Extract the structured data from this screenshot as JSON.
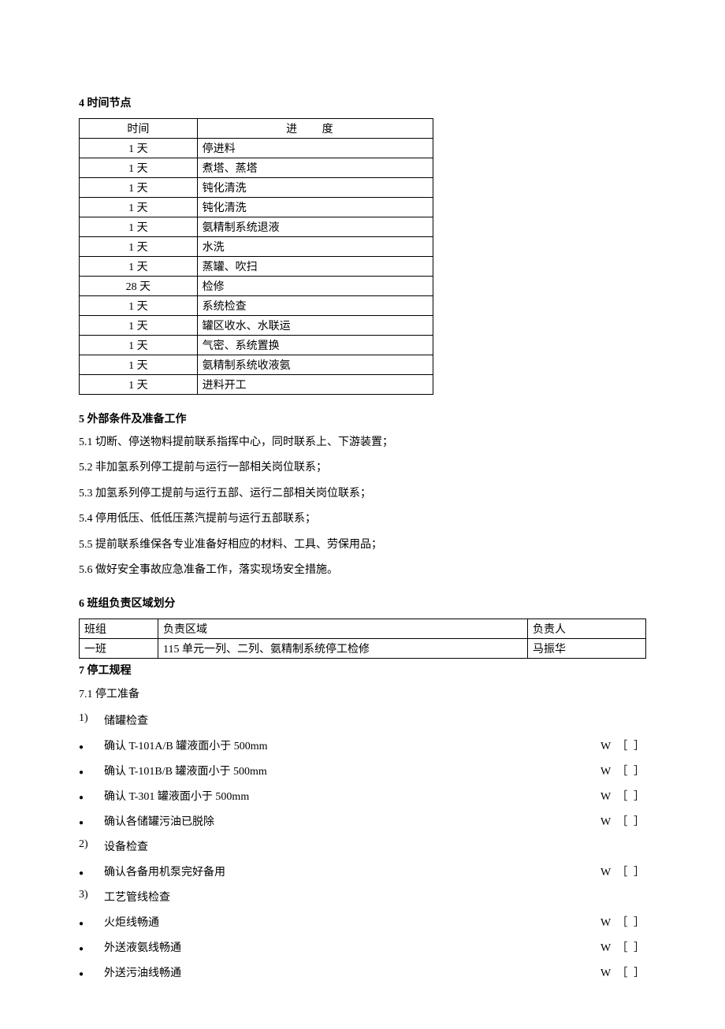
{
  "section4": {
    "heading": "4 时间节点",
    "table": {
      "headers": [
        "时间",
        "进 度"
      ],
      "rows": [
        [
          "1 天",
          "停进料"
        ],
        [
          "1 天",
          "煮塔、蒸塔"
        ],
        [
          "1 天",
          "钝化清洗"
        ],
        [
          "1 天",
          "钝化清洗"
        ],
        [
          "1 天",
          "氨精制系统退液"
        ],
        [
          "1 天",
          "水洗"
        ],
        [
          "1 天",
          "蒸罐、吹扫"
        ],
        [
          "28 天",
          "检修"
        ],
        [
          "1 天",
          "系统检查"
        ],
        [
          "1 天",
          "罐区收水、水联运"
        ],
        [
          "1 天",
          "气密、系统置换"
        ],
        [
          "1 天",
          "氨精制系统收液氨"
        ],
        [
          "1 天",
          "进料开工"
        ]
      ]
    }
  },
  "section5": {
    "heading": "5 外部条件及准备工作",
    "items": [
      "5.1 切断、停送物料提前联系指挥中心，同时联系上、下游装置；",
      "5.2 非加氢系列停工提前与运行一部相关岗位联系；",
      "5.3 加氢系列停工提前与运行五部、运行二部相关岗位联系；",
      "5.4 停用低压、低低压蒸汽提前与运行五部联系；",
      "5.5 提前联系维保各专业准备好相应的材料、工具、劳保用品；",
      "5.6 做好安全事故应急准备工作，落实现场安全措施。"
    ]
  },
  "section6": {
    "heading": "6  班组负责区域划分",
    "table": {
      "headers": [
        "班组",
        "负责区域",
        "负责人"
      ],
      "rows": [
        [
          "一班",
          "115 单元一列、二列、氨精制系统停工检修",
          "马振华"
        ]
      ]
    }
  },
  "section7": {
    "heading": "7 停工规程",
    "sub": "7.1 停工准备",
    "groups": [
      {
        "num": "1)",
        "label": "储罐检查",
        "items": [
          "确认 T-101A/B 罐液面小于 500mm",
          "确认 T-101B/B 罐液面小于 500mm",
          "确认 T-301 罐液面小于 500mm",
          "确认各储罐污油已脱除"
        ]
      },
      {
        "num": "2)",
        "label": "设备检查",
        "items": [
          "确认各备用机泵完好备用"
        ]
      },
      {
        "num": "3)",
        "label": "工艺管线检查",
        "items": [
          "火炬线畅通",
          "外送液氨线畅通",
          "外送污油线畅通"
        ]
      }
    ],
    "checkbox_label": "W ［    ］"
  }
}
